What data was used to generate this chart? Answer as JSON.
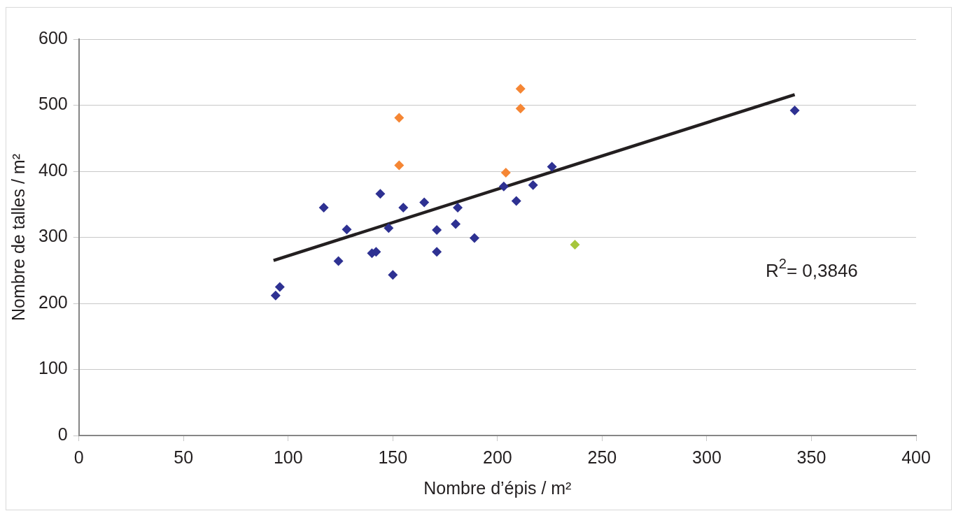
{
  "chart_data": {
    "type": "scatter",
    "xlabel": "Nombre d’épis / m²",
    "ylabel": "Nombre de talles / m²",
    "xlim": [
      0,
      400
    ],
    "xticks": [
      0,
      50,
      100,
      150,
      200,
      250,
      300,
      350,
      400
    ],
    "ylim": [
      0,
      600
    ],
    "yticks": [
      0,
      100,
      200,
      300,
      400,
      500,
      600
    ],
    "grid": "y",
    "marker": "diamond",
    "legend": false,
    "annotations": [
      "R$^{2}$= 0,3846"
    ],
    "series": [
      {
        "color": "#2e3192",
        "x": [
          94,
          96,
          117,
          124,
          128,
          140,
          142,
          144,
          148,
          150,
          155,
          165,
          171,
          171,
          181,
          180,
          189,
          203,
          209,
          217,
          226,
          342
        ],
        "values": [
          212,
          225,
          345,
          264,
          312,
          276,
          278,
          366,
          314,
          243,
          345,
          353,
          311,
          278,
          345,
          320,
          299,
          377,
          355,
          379,
          407,
          492
        ]
      },
      {
        "color": "#f58634",
        "x": [
          153,
          153,
          211,
          211,
          204
        ],
        "values": [
          481,
          409,
          525,
          495,
          398
        ]
      },
      {
        "color": "#a6c63b",
        "x": [
          237
        ],
        "values": [
          289
        ]
      },
      {
        "type": "line",
        "marker": "none",
        "color": "#231f20",
        "x": [
          93,
          342
        ],
        "values": [
          265,
          516
        ]
      }
    ]
  }
}
